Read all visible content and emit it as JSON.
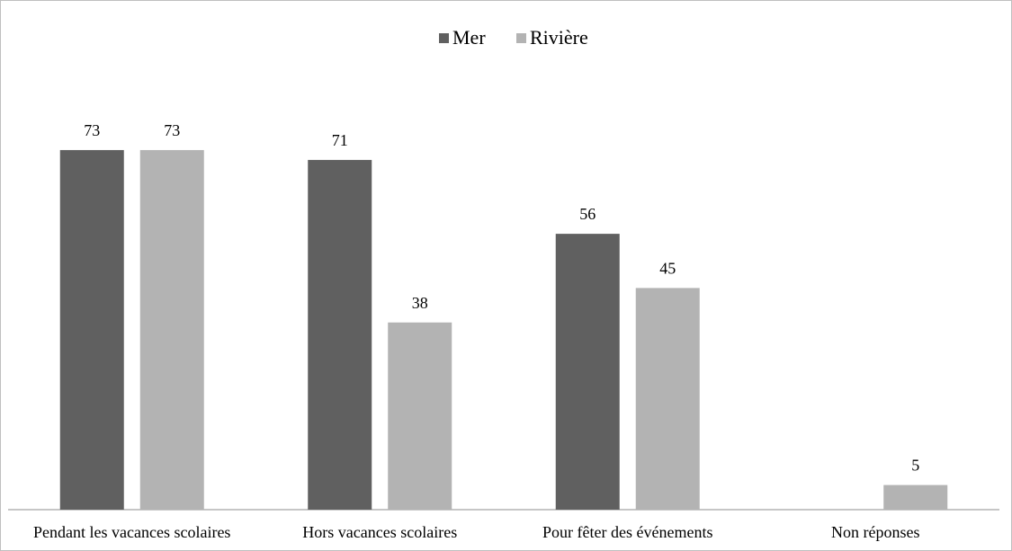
{
  "chart_data": {
    "type": "bar",
    "categories": [
      "Pendant les vacances scolaires",
      "Hors vacances scolaires",
      "Pour fêter des événements",
      "Non réponses"
    ],
    "series": [
      {
        "name": "Mer",
        "color": "#606060",
        "values": [
          73,
          71,
          56,
          null
        ]
      },
      {
        "name": "Rivière",
        "color": "#b3b3b3",
        "values": [
          73,
          38,
          45,
          5
        ]
      }
    ],
    "ylim": [
      0,
      80
    ],
    "grid": false,
    "legend_position": "top",
    "data_labels": true
  }
}
